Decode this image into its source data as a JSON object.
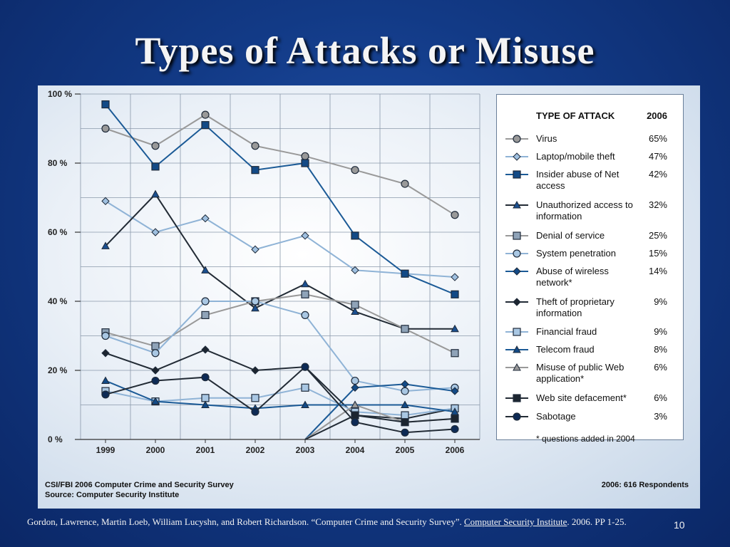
{
  "slide": {
    "title": "Types of Attacks or Misuse",
    "citation_text": "Gordon, Lawrence, Martin Loeb, William Lucyshn, and Robert Richardson. “Computer Crime and Security Survey”. ",
    "citation_link_text": "Computer Security Institute",
    "citation_tail": ". 2006. PP 1-25.",
    "page_number": "10"
  },
  "figure": {
    "source_line1": "CSI/FBI 2006 Computer Crime and Security Survey",
    "source_line2": "Source: Computer Security Institute",
    "respondents": "2006: 616 Respondents",
    "legend_header_type": "TYPE OF ATTACK",
    "legend_header_year": "2006",
    "legend_note": "* questions added in 2004"
  },
  "chart_data": {
    "type": "line",
    "x": [
      "1999",
      "2000",
      "2001",
      "2002",
      "2003",
      "2004",
      "2005",
      "2006"
    ],
    "y_ticks": [
      "0 %",
      "20 %",
      "40 %",
      "60 %",
      "80 %",
      "100 %"
    ],
    "ylim": [
      0,
      100
    ],
    "grid": true,
    "legend_placement": "right",
    "series": [
      {
        "name": "Virus",
        "legend_value": "65%",
        "marker": "circle",
        "color": "#999999",
        "fill": "#999999",
        "values": [
          90,
          85,
          94,
          85,
          82,
          78,
          74,
          65
        ]
      },
      {
        "name": "Laptop/mobile theft",
        "legend_value": "47%",
        "marker": "diamond",
        "color": "#8fb3d6",
        "fill": "#9fc0e0",
        "values": [
          69,
          60,
          64,
          55,
          59,
          49,
          48,
          47
        ]
      },
      {
        "name": "Insider abuse of Net access",
        "legend_value": "42%",
        "marker": "square",
        "color": "#1b5a96",
        "fill": "#134a86",
        "values": [
          97,
          79,
          91,
          78,
          80,
          59,
          48,
          42
        ]
      },
      {
        "name": "Unauthorized access to information",
        "legend_value": "32%",
        "marker": "triangle",
        "color": "#222b35",
        "fill": "#1b4f8f",
        "values": [
          56,
          71,
          49,
          38,
          45,
          37,
          32,
          32
        ]
      },
      {
        "name": "Denial of service",
        "legend_value": "25%",
        "marker": "square",
        "color": "#999999",
        "fill": "#8fa3b8",
        "values": [
          31,
          27,
          36,
          40,
          42,
          39,
          32,
          25
        ]
      },
      {
        "name": "System penetration",
        "legend_value": "15%",
        "marker": "circle",
        "color": "#8fb3d6",
        "fill": "#a9c7e3",
        "values": [
          30,
          25,
          40,
          40,
          36,
          17,
          14,
          15
        ]
      },
      {
        "name": "Abuse of wireless network*",
        "legend_value": "14%",
        "marker": "diamond",
        "color": "#1b5a96",
        "fill": "#134a86",
        "values": [
          null,
          null,
          null,
          null,
          null,
          15,
          16,
          14
        ]
      },
      {
        "name": "Theft of proprietary information",
        "legend_value": "9%",
        "marker": "diamond",
        "color": "#222b35",
        "fill": "#1c2530",
        "values": [
          25,
          20,
          26,
          20,
          21,
          7,
          6,
          9
        ]
      },
      {
        "name": "Financial fraud",
        "legend_value": "9%",
        "marker": "square",
        "color": "#8fb3d6",
        "fill": "#a9c7e3",
        "values": [
          14,
          11,
          12,
          12,
          15,
          8,
          7,
          9
        ]
      },
      {
        "name": "Telecom fraud",
        "legend_value": "8%",
        "marker": "triangle",
        "color": "#1b5a96",
        "fill": "#134a86",
        "values": [
          17,
          11,
          10,
          9,
          10,
          10,
          10,
          8
        ]
      },
      {
        "name": "Misuse of public Web application*",
        "legend_value": "6%",
        "marker": "triangle",
        "color": "#999999",
        "fill": "#999999",
        "values": [
          null,
          null,
          null,
          null,
          null,
          10,
          5,
          6
        ]
      },
      {
        "name": "Web site defacement*",
        "legend_value": "6%",
        "marker": "square",
        "color": "#222b35",
        "fill": "#1c2530",
        "values": [
          null,
          null,
          null,
          null,
          null,
          7,
          5,
          6
        ]
      },
      {
        "name": "Sabotage",
        "legend_value": "3%",
        "marker": "circle",
        "color": "#222b35",
        "fill": "#0d2a55",
        "values": [
          13,
          17,
          18,
          8,
          21,
          5,
          2,
          3
        ]
      }
    ]
  }
}
